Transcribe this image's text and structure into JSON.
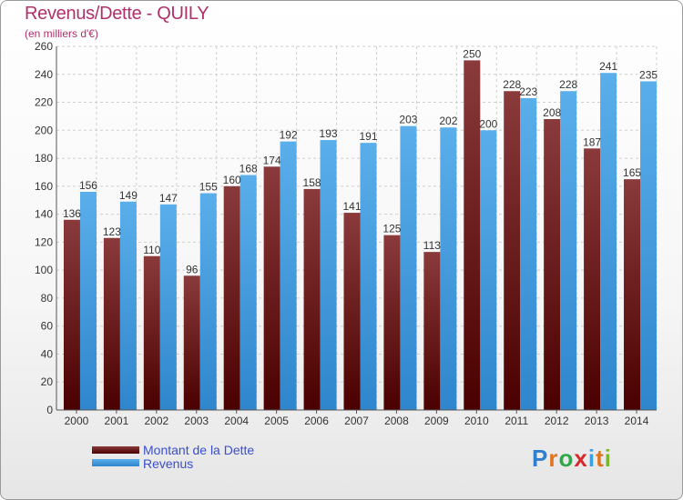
{
  "header": {
    "title": "Revenus/Dette - QUILY",
    "subtitle": "(en milliers d'€)"
  },
  "legend": {
    "debt_label": "Montant de la Dette",
    "revenue_label": "Revenus"
  },
  "logo": {
    "letters": [
      "P",
      "r",
      "o",
      "x",
      "i",
      "t",
      "i"
    ],
    "colors": [
      "#2f7fd0",
      "#e0751e",
      "#2fa84a",
      "#d42a2a",
      "#3aa0e0",
      "#e0751e",
      "#7ab832"
    ]
  },
  "colors": {
    "debt_light": "#8a3a3a",
    "debt_dark": "#4a0000",
    "revenue_light": "#5aaeea",
    "revenue_dark": "#2f86cc",
    "title": "#b0306a"
  },
  "chart_data": {
    "type": "bar",
    "categories": [
      "2000",
      "2001",
      "2002",
      "2003",
      "2004",
      "2005",
      "2006",
      "2007",
      "2008",
      "2009",
      "2010",
      "2011",
      "2012",
      "2013",
      "2014"
    ],
    "series": [
      {
        "name": "Montant de la Dette",
        "values": [
          136,
          123,
          110,
          96,
          160,
          174,
          158,
          141,
          125,
          113,
          250,
          228,
          208,
          187,
          165
        ]
      },
      {
        "name": "Revenus",
        "values": [
          156,
          149,
          147,
          155,
          168,
          192,
          193,
          191,
          203,
          202,
          200,
          223,
          228,
          241,
          235
        ]
      }
    ],
    "yticks": [
      0,
      20,
      40,
      60,
      80,
      100,
      120,
      140,
      160,
      180,
      200,
      220,
      240,
      260
    ],
    "ylim": [
      0,
      260
    ],
    "grid": true,
    "legend_position": "bottom-left"
  }
}
